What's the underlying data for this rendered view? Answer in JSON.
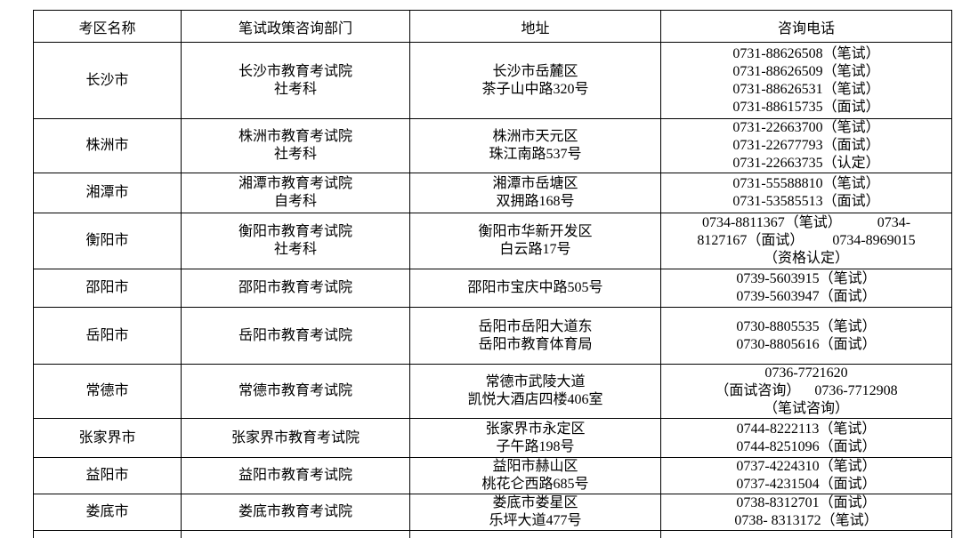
{
  "table": {
    "headers": [
      "考区名称",
      "笔试政策咨询部门",
      "地址",
      "咨询电话"
    ],
    "rows": [
      {
        "region": "长沙市",
        "department": [
          "长沙市教育考试院",
          "社考科"
        ],
        "address": [
          "长沙市岳麓区",
          "茶子山中路320号"
        ],
        "phones": [
          "0731-88626508（笔试）",
          "0731-88626509（笔试）",
          "0731-88626531（笔试）",
          "0731-88615735（面试）"
        ]
      },
      {
        "region": "株洲市",
        "department": [
          "株洲市教育考试院",
          "社考科"
        ],
        "address": [
          "株洲市天元区",
          "珠江南路537号"
        ],
        "phones": [
          "0731-22663700（笔试）",
          "0731-22677793（面试）",
          "0731-22663735（认定）"
        ]
      },
      {
        "region": "湘潭市",
        "department": [
          "湘潭市教育考试院",
          "自考科"
        ],
        "address": [
          "湘潭市岳塘区",
          "双拥路168号"
        ],
        "phones": [
          "0731-55588810（笔试）",
          "0731-53585513（面试）"
        ]
      },
      {
        "region": "衡阳市",
        "department": [
          "衡阳市教育考试院",
          "社考科"
        ],
        "address": [
          "衡阳市华新开发区",
          "白云路17号"
        ],
        "phones": [
          "0734-8811367（笔试）          0734-",
          "8127167（面试）        0734-8969015",
          "（资格认定）"
        ]
      },
      {
        "region": "邵阳市",
        "department": [
          "邵阳市教育考试院"
        ],
        "address": [
          "邵阳市宝庆中路505号"
        ],
        "phones": [
          "0739-5603915（笔试）",
          "0739-5603947（面试）"
        ]
      },
      {
        "region": "岳阳市",
        "department": [
          "岳阳市教育考试院"
        ],
        "address": [
          "岳阳市岳阳大道东",
          "岳阳市教育体育局"
        ],
        "phones": [
          "0730-8805535（笔试）",
          "0730-8805616（面试）"
        ]
      },
      {
        "region": "常德市",
        "department": [
          "常德市教育考试院"
        ],
        "address": [
          "常德市武陵大道",
          "凯悦大酒店四楼406室"
        ],
        "phones": [
          "0736-7721620",
          "（面试咨询）    0736-7712908",
          "（笔试咨询）"
        ]
      },
      {
        "region": "张家界市",
        "department": [
          "张家界市教育考试院"
        ],
        "address": [
          "张家界市永定区",
          "子午路198号"
        ],
        "phones": [
          "0744-8222113（笔试）",
          "0744-8251096（面试）"
        ]
      },
      {
        "region": "益阳市",
        "department": [
          "益阳市教育考试院"
        ],
        "address": [
          "益阳市赫山区",
          "桃花仑西路685号"
        ],
        "phones": [
          "0737-4224310（笔试）",
          "0737-4231504（面试）"
        ]
      },
      {
        "region": "娄底市",
        "department": [
          "娄底市教育考试院"
        ],
        "address": [
          "娄底市娄星区",
          "乐坪大道477号"
        ],
        "phones": [
          "0738-8312701（面试）",
          "0738- 8313172（笔试）"
        ]
      }
    ],
    "colors": {
      "text": "#000000",
      "border": "#000000",
      "background": "#ffffff"
    }
  }
}
